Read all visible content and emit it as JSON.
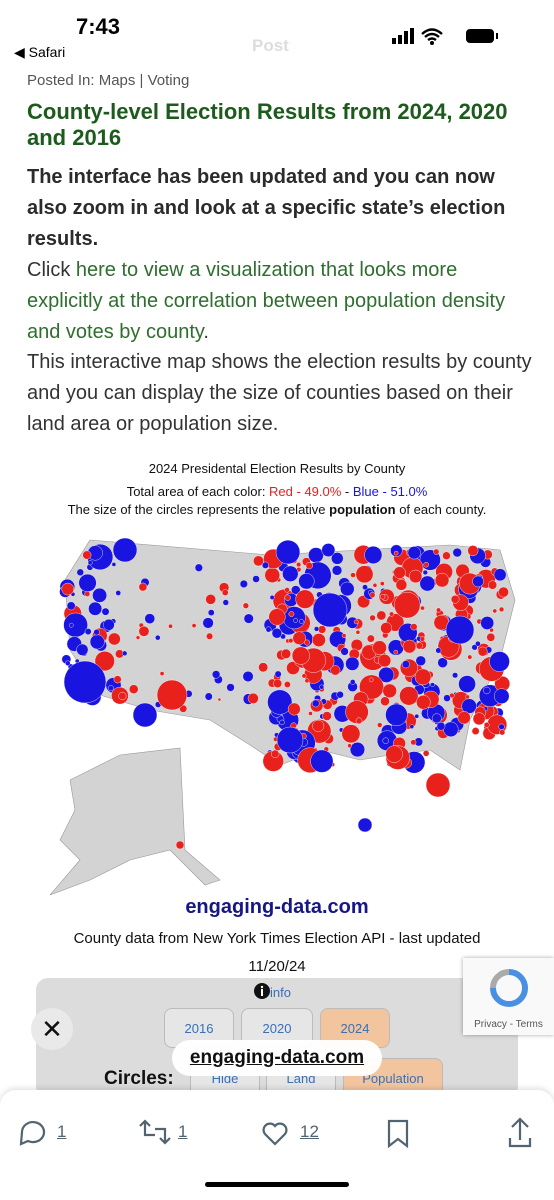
{
  "status_bar": {
    "time": "7:43",
    "back_app": "Safari",
    "faded_header": "Post"
  },
  "article": {
    "posted_in": "Posted In: Maps | Voting",
    "title": "County-level Election Results from 2024, 2020 and 2016",
    "intro": "The interface has been updated and you can now also zoom in and look at a specific state’s election results.",
    "click_prefix": "Click ",
    "link_text": "here to view a visualization that looks more explicitly at the correlation between population density and votes by county",
    "click_suffix": ".",
    "description": "This interactive map shows the election results by county and you can display the size of counties based on their land area or population size."
  },
  "map": {
    "title": "2024 Presidental Election Results by County",
    "area_prefix": "Total area of each color: ",
    "red_label": "Red - 49.0%",
    "separator": " - ",
    "blue_label": "Blue - 51.0%",
    "size_prefix": "The size of the circles represents the relative ",
    "size_bold": "population",
    "size_suffix": " of each county.",
    "watermark": "engaging-data.com",
    "source": "County data from New York Times Election API - last updated",
    "updated": "11/20/24"
  },
  "controls": {
    "info": "info",
    "years": [
      "2016",
      "2020",
      "2024"
    ],
    "circles_label": "Circles:",
    "circle_options": [
      "Hide",
      "Land",
      "Population"
    ]
  },
  "overlay": {
    "site_pill": "engaging-data.com",
    "recaptcha": "Privacy - Terms"
  },
  "toolbar": {
    "replies": "1",
    "reposts": "1",
    "likes": "12"
  }
}
